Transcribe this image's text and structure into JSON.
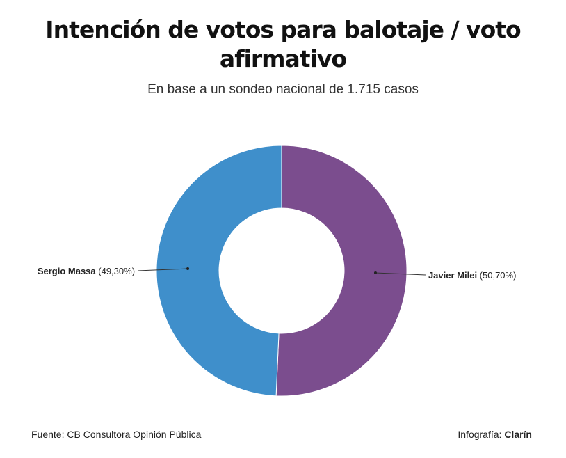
{
  "footer": {
    "source": "Fuente: CB Consultora Opinión Pública",
    "credit_prefix": "Infografía: ",
    "credit_brand": "Clarín"
  },
  "chart_data": {
    "type": "pie",
    "title": "Intención de votos para balotaje / voto afirmativo",
    "subtitle": "En base a un sondeo nacional de 1.715 casos",
    "donut": true,
    "slices": [
      {
        "label": "Javier Milei",
        "value_label": "(50,70%)",
        "value": 50.7,
        "color": "#7b4d8e"
      },
      {
        "label": "Sergio Massa",
        "value_label": "(49,30%)",
        "value": 49.3,
        "color": "#3f8fcb"
      }
    ]
  }
}
